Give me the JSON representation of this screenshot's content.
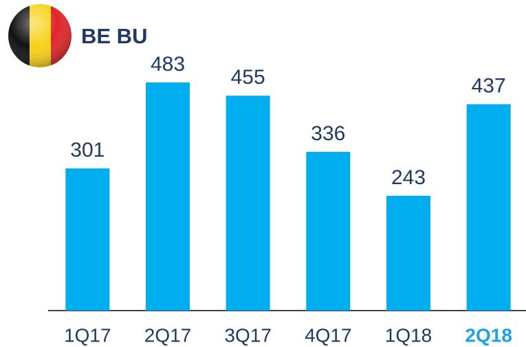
{
  "chart_data": {
    "type": "bar",
    "title": "BE BU",
    "categories": [
      "1Q17",
      "2Q17",
      "3Q17",
      "4Q17",
      "1Q18",
      "2Q18"
    ],
    "values": [
      301,
      483,
      455,
      336,
      243,
      437
    ],
    "color": "#00aeef",
    "highlight": 5,
    "highlight_color": "#1ba3e3"
  }
}
